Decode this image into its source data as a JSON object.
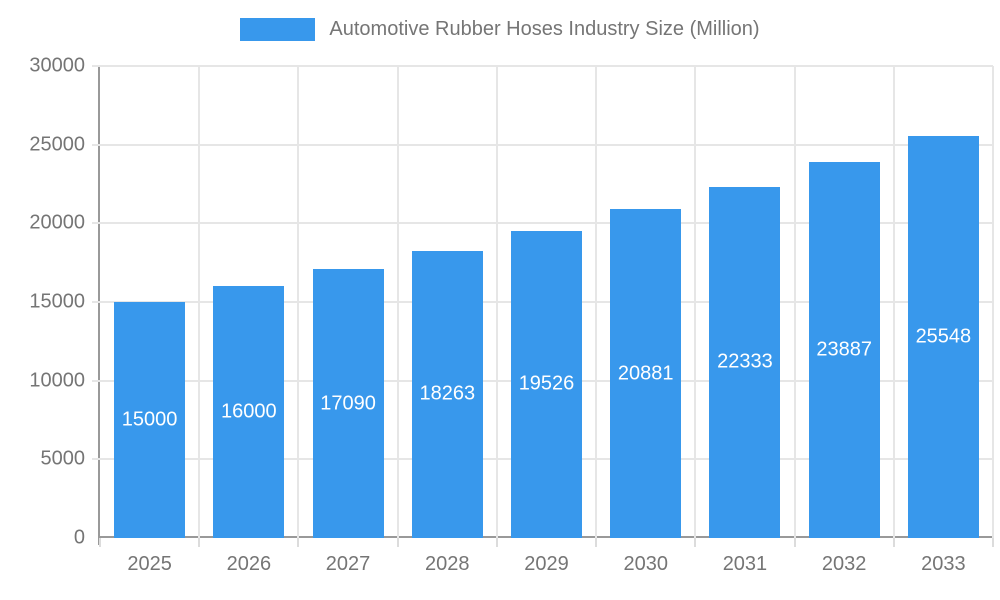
{
  "chart_data": {
    "type": "bar",
    "title": "Automotive Rubber Hoses Industry Size (Million)",
    "legend": {
      "position": "top",
      "label": "Automotive Rubber Hoses Industry Size (Million)"
    },
    "categories": [
      "2025",
      "2026",
      "2027",
      "2028",
      "2029",
      "2030",
      "2031",
      "2032",
      "2033"
    ],
    "values": [
      15000,
      16000,
      17090,
      18263,
      19526,
      20881,
      22333,
      23887,
      25548
    ],
    "value_labels": [
      "15000",
      "16000",
      "17090",
      "18263",
      "19526",
      "20881",
      "22333",
      "23887",
      "25548"
    ],
    "xlabel": "",
    "ylabel": "",
    "ylim": [
      0,
      30000
    ],
    "ytick_step": 5000,
    "ytick_labels": [
      "0",
      "5000",
      "10000",
      "15000",
      "20000",
      "25000",
      "30000"
    ],
    "grid": true,
    "colors": {
      "bar": "#3898ec",
      "value_label_text": "#ffffff",
      "axis_line": "#999999",
      "gridline": "#e6e6e6",
      "tick": "#dcdcdc",
      "axis_text": "#757575",
      "legend_text": "#757575",
      "background": "#ffffff"
    }
  }
}
